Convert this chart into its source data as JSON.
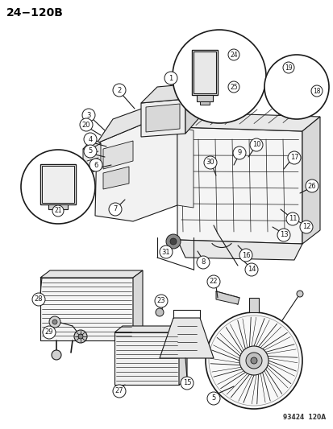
{
  "title": "24−120B",
  "watermark": "93424  120A",
  "bg_color": "#ffffff",
  "title_fontsize": 10,
  "title_color": "#000000",
  "fig_width": 4.14,
  "fig_height": 5.33,
  "dpi": 100,
  "lc": "#1a1a1a",
  "part_numbers": [
    1,
    2,
    3,
    4,
    5,
    6,
    7,
    8,
    9,
    10,
    11,
    12,
    13,
    14,
    15,
    16,
    17,
    18,
    19,
    20,
    21,
    22,
    23,
    24,
    25,
    26,
    27,
    28,
    29,
    30,
    31
  ]
}
